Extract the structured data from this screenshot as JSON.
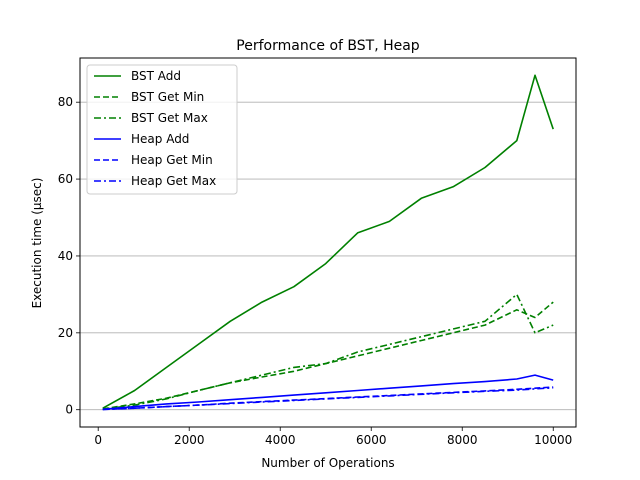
{
  "chart_data": {
    "type": "line",
    "title": "Performance of BST, Heap",
    "xlabel": "Number of Operations",
    "ylabel": "Execution time (μsec)",
    "xlim": [
      -400,
      10500
    ],
    "ylim": [
      -4.5,
      91.5
    ],
    "xticks": [
      0,
      2000,
      4000,
      6000,
      8000,
      10000
    ],
    "xtick_labels": [
      "0",
      "2000",
      "4000",
      "6000",
      "8000",
      "10000"
    ],
    "yticks": [
      0,
      20,
      40,
      60,
      80
    ],
    "ytick_labels": [
      "0",
      "20",
      "40",
      "60",
      "80"
    ],
    "grid": "y-axis horizontal lines",
    "legend_position": "upper-left",
    "x": [
      100,
      800,
      1500,
      2200,
      2900,
      3600,
      4300,
      5000,
      5700,
      6400,
      7100,
      7800,
      8500,
      9200,
      9600,
      10000
    ],
    "series": [
      {
        "name": "BST Add",
        "color": "#008000",
        "style": "solid",
        "values": [
          0.4,
          5,
          11,
          17,
          23,
          28,
          32,
          38,
          46,
          49,
          55,
          58,
          63,
          70,
          87,
          73
        ]
      },
      {
        "name": "BST Get Min",
        "color": "#008000",
        "style": "dashed",
        "values": [
          0.2,
          1.5,
          3,
          5,
          7,
          8.5,
          10,
          12,
          14,
          16,
          18,
          20,
          22,
          26,
          24,
          28
        ]
      },
      {
        "name": "BST Get Max",
        "color": "#008000",
        "style": "dashdot",
        "values": [
          0.1,
          1.2,
          2.8,
          5,
          7,
          9,
          11,
          12,
          15,
          17,
          19,
          21,
          23,
          30,
          20,
          22
        ]
      },
      {
        "name": "Heap Add",
        "color": "#0000ff",
        "style": "solid",
        "values": [
          0.1,
          0.8,
          1.5,
          2,
          2.6,
          3.2,
          3.8,
          4.4,
          5,
          5.6,
          6.2,
          6.8,
          7.3,
          8,
          9,
          7.7
        ]
      },
      {
        "name": "Heap Get Min",
        "color": "#0000ff",
        "style": "dashed",
        "values": [
          0.05,
          0.4,
          0.8,
          1.2,
          1.7,
          2.1,
          2.5,
          2.9,
          3.3,
          3.7,
          4.1,
          4.5,
          4.9,
          5.3,
          5.6,
          5.9
        ]
      },
      {
        "name": "Heap Get Max",
        "color": "#0000ff",
        "style": "dashdot",
        "values": [
          0.05,
          0.4,
          0.8,
          1.2,
          1.6,
          2,
          2.4,
          2.8,
          3.2,
          3.6,
          4,
          4.4,
          4.8,
          5.1,
          5.4,
          5.7
        ]
      }
    ]
  }
}
